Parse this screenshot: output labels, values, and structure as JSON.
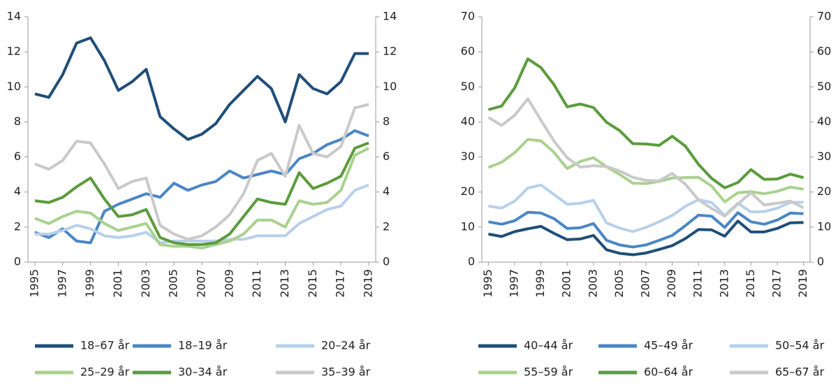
{
  "chart_data": [
    {
      "type": "line",
      "x": [
        1995,
        1996,
        1997,
        1998,
        1999,
        2000,
        2001,
        2002,
        2003,
        2004,
        2005,
        2006,
        2007,
        2008,
        2009,
        2010,
        2011,
        2012,
        2013,
        2014,
        2015,
        2016,
        2017,
        2018,
        2019
      ],
      "xlim": [
        1994.5,
        2019.5
      ],
      "xticks": [
        1995,
        1997,
        1999,
        2001,
        2003,
        2005,
        2007,
        2009,
        2011,
        2013,
        2015,
        2017,
        2019
      ],
      "ylim": [
        0,
        14
      ],
      "yticks": [
        0,
        2,
        4,
        6,
        8,
        10,
        12,
        14
      ],
      "y2lim": [
        0,
        14
      ],
      "y2ticks": [
        0,
        2,
        4,
        6,
        8,
        10,
        12,
        14
      ],
      "series": [
        {
          "name": "18–67 år",
          "color": "#1f4e79",
          "values": [
            9.6,
            9.4,
            10.7,
            12.5,
            12.8,
            11.5,
            9.8,
            10.3,
            11.0,
            8.3,
            7.6,
            7.0,
            7.3,
            7.9,
            9.0,
            9.8,
            10.6,
            9.9,
            8.0,
            10.7,
            9.9,
            9.6,
            10.3,
            11.9,
            11.9
          ]
        },
        {
          "name": "18–19 år",
          "color": "#4a86c5",
          "values": [
            1.7,
            1.4,
            1.9,
            1.2,
            1.1,
            2.9,
            3.3,
            3.6,
            3.9,
            3.7,
            4.5,
            4.1,
            4.4,
            4.6,
            5.2,
            4.8,
            5.0,
            5.2,
            5.0,
            5.9,
            6.2,
            6.7,
            7.0,
            7.5,
            7.2
          ]
        },
        {
          "name": "20–24 år",
          "color": "#b7d0ea",
          "values": [
            1.6,
            1.6,
            1.8,
            2.1,
            1.9,
            1.5,
            1.4,
            1.5,
            1.7,
            1.1,
            1.2,
            1.2,
            1.2,
            1.2,
            1.3,
            1.3,
            1.5,
            1.5,
            1.5,
            2.2,
            2.6,
            3.0,
            3.2,
            4.1,
            4.4
          ]
        },
        {
          "name": "25–29 år",
          "color": "#a9d18e",
          "values": [
            2.5,
            2.2,
            2.6,
            2.9,
            2.8,
            2.2,
            1.8,
            2.0,
            2.2,
            1.0,
            0.9,
            0.9,
            0.8,
            1.0,
            1.2,
            1.6,
            2.4,
            2.4,
            2.0,
            3.5,
            3.3,
            3.4,
            4.1,
            6.1,
            6.5
          ]
        },
        {
          "name": "30–34 år",
          "color": "#5b9b3c",
          "values": [
            3.5,
            3.4,
            3.7,
            4.3,
            4.8,
            3.6,
            2.6,
            2.7,
            3.0,
            1.4,
            1.1,
            1.0,
            1.0,
            1.1,
            1.6,
            2.6,
            3.6,
            3.4,
            3.3,
            5.1,
            4.2,
            4.5,
            4.9,
            6.5,
            6.8
          ]
        },
        {
          "name": "35–39 år",
          "color": "#c9c9c9",
          "values": [
            5.6,
            5.3,
            5.8,
            6.9,
            6.8,
            5.6,
            4.2,
            4.6,
            4.8,
            2.1,
            1.6,
            1.3,
            1.5,
            2.0,
            2.7,
            3.9,
            5.8,
            6.2,
            4.9,
            7.8,
            6.2,
            6.0,
            6.6,
            8.8,
            9.0
          ]
        }
      ]
    },
    {
      "type": "line",
      "x": [
        1995,
        1996,
        1997,
        1998,
        1999,
        2000,
        2001,
        2002,
        2003,
        2004,
        2005,
        2006,
        2007,
        2008,
        2009,
        2010,
        2011,
        2012,
        2013,
        2014,
        2015,
        2016,
        2017,
        2018,
        2019
      ],
      "xlim": [
        1994.5,
        2019.5
      ],
      "xticks": [
        1995,
        1997,
        1999,
        2001,
        2003,
        2005,
        2007,
        2009,
        2011,
        2013,
        2015,
        2017,
        2019
      ],
      "ylim": [
        0,
        70
      ],
      "yticks": [
        0,
        10,
        20,
        30,
        40,
        50,
        60,
        70
      ],
      "y2lim": [
        0,
        70
      ],
      "y2ticks": [
        0,
        10,
        20,
        30,
        40,
        50,
        60,
        70
      ],
      "series": [
        {
          "name": "40–44 år",
          "color": "#1f4e79",
          "values": [
            8,
            7.3,
            8.7,
            9.5,
            10.2,
            8.2,
            6.4,
            6.6,
            7.6,
            3.5,
            2.5,
            2.1,
            2.6,
            3.6,
            4.7,
            6.7,
            9.3,
            9.2,
            7.4,
            11.7,
            8.6,
            8.6,
            9.6,
            11.2,
            11.3
          ]
        },
        {
          "name": "45–49 år",
          "color": "#4a86c5",
          "values": [
            11.5,
            10.8,
            11.8,
            14.2,
            14.0,
            12.4,
            9.6,
            9.8,
            11.0,
            6.2,
            4.9,
            4.3,
            4.9,
            6.2,
            7.6,
            10.4,
            13.4,
            13.1,
            9.9,
            14.1,
            11.5,
            10.8,
            12.0,
            14.0,
            13.8
          ]
        },
        {
          "name": "50–54 år",
          "color": "#b7d0ea",
          "values": [
            16,
            15.4,
            17.4,
            21.1,
            22.0,
            19.3,
            16.5,
            16.8,
            17.6,
            11.2,
            9.7,
            8.7,
            9.9,
            11.5,
            13.3,
            15.9,
            17.8,
            17.0,
            13.3,
            16.8,
            14.3,
            14.4,
            15.4,
            17.0,
            17.1
          ]
        },
        {
          "name": "55–59 år",
          "color": "#a9d18e",
          "values": [
            27,
            28.5,
            31.2,
            35,
            34.6,
            31.3,
            26.7,
            28.7,
            29.8,
            27.2,
            25,
            22.5,
            22.4,
            23,
            24,
            24.1,
            24.2,
            21.7,
            17.2,
            19.8,
            20.1,
            19.5,
            20.2,
            21.4,
            20.8
          ]
        },
        {
          "name": "60–64 år",
          "color": "#5b9b3c",
          "values": [
            43.5,
            44.5,
            49.7,
            58,
            55.5,
            50.6,
            44.3,
            45.1,
            44.1,
            39.9,
            37.5,
            33.8,
            33.7,
            33.3,
            35.9,
            33.1,
            27.9,
            23.9,
            21.2,
            22.7,
            26.4,
            23.6,
            23.7,
            25.1,
            24.1
          ]
        },
        {
          "name": "65–67 år",
          "color": "#c9c9c9",
          "values": [
            41.3,
            39,
            41.9,
            46.6,
            40.5,
            34.5,
            29.8,
            27.1,
            27.5,
            27.3,
            26.0,
            24.2,
            23.3,
            23.2,
            25.3,
            22.2,
            17.8,
            15.3,
            13.1,
            16.6,
            19.8,
            16.3,
            16.8,
            17.4,
            15.5
          ]
        }
      ]
    }
  ]
}
